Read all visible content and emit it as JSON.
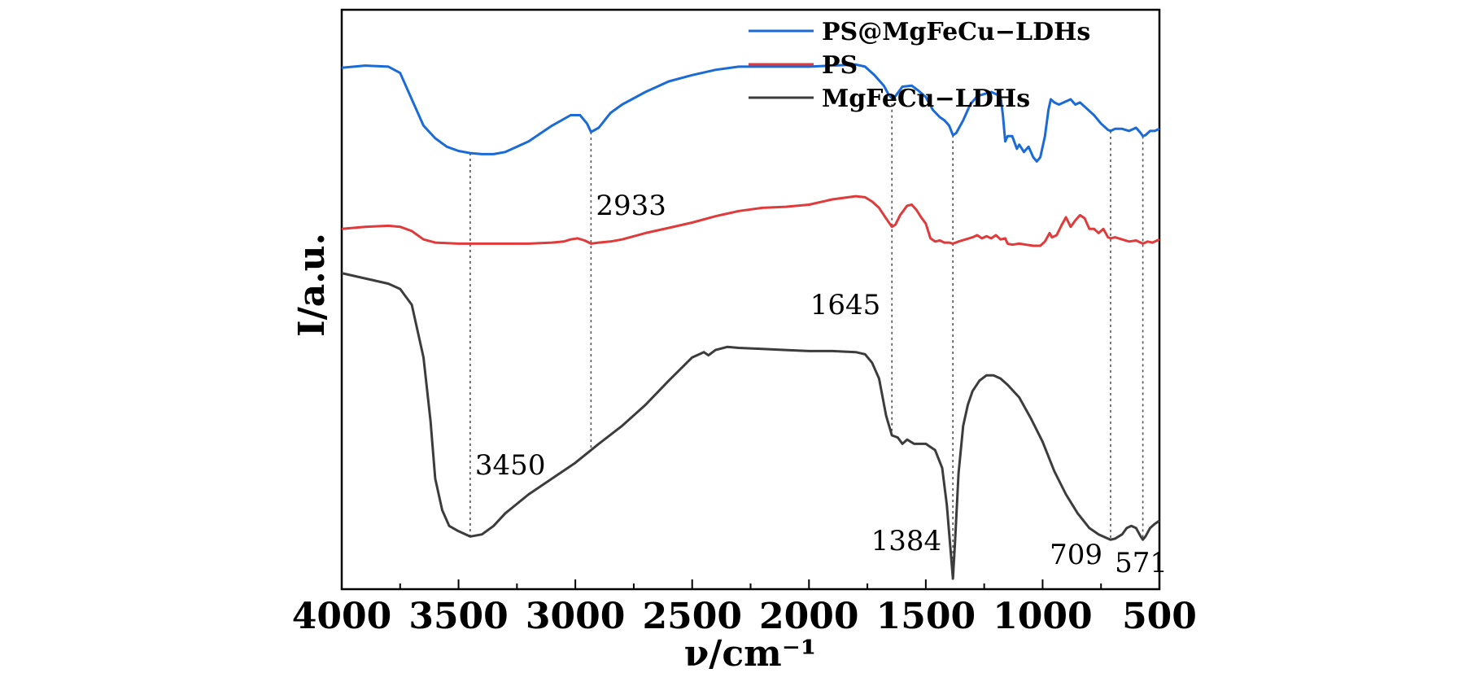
{
  "chart_data": {
    "type": "line",
    "xlabel": "ν/cm⁻¹",
    "ylabel": "I/a.u.",
    "xlim": [
      4000,
      500
    ],
    "x_reversed": true,
    "x_ticks": [
      4000,
      3500,
      3000,
      2500,
      2000,
      1500,
      1000,
      500
    ],
    "yticks_shown": false,
    "grid": false,
    "legend_position": "top-right",
    "series": [
      {
        "name": "PS@MgFeCu−LDHs",
        "color": "#1a6ad8",
        "points": [
          [
            4000,
            4.95
          ],
          [
            3900,
            4.97
          ],
          [
            3800,
            4.96
          ],
          [
            3750,
            4.9
          ],
          [
            3700,
            4.65
          ],
          [
            3650,
            4.4
          ],
          [
            3600,
            4.28
          ],
          [
            3550,
            4.2
          ],
          [
            3500,
            4.16
          ],
          [
            3450,
            4.14
          ],
          [
            3400,
            4.13
          ],
          [
            3350,
            4.13
          ],
          [
            3300,
            4.15
          ],
          [
            3200,
            4.25
          ],
          [
            3100,
            4.4
          ],
          [
            3020,
            4.5
          ],
          [
            2980,
            4.5
          ],
          [
            2950,
            4.42
          ],
          [
            2933,
            4.34
          ],
          [
            2900,
            4.38
          ],
          [
            2850,
            4.52
          ],
          [
            2800,
            4.6
          ],
          [
            2700,
            4.72
          ],
          [
            2600,
            4.82
          ],
          [
            2500,
            4.88
          ],
          [
            2400,
            4.93
          ],
          [
            2300,
            4.96
          ],
          [
            2200,
            4.96
          ],
          [
            2100,
            4.96
          ],
          [
            2000,
            4.96
          ],
          [
            1900,
            4.97
          ],
          [
            1800,
            4.98
          ],
          [
            1760,
            4.96
          ],
          [
            1720,
            4.88
          ],
          [
            1680,
            4.78
          ],
          [
            1660,
            4.7
          ],
          [
            1645,
            4.66
          ],
          [
            1630,
            4.68
          ],
          [
            1600,
            4.77
          ],
          [
            1560,
            4.78
          ],
          [
            1530,
            4.73
          ],
          [
            1500,
            4.67
          ],
          [
            1470,
            4.55
          ],
          [
            1440,
            4.48
          ],
          [
            1420,
            4.45
          ],
          [
            1400,
            4.4
          ],
          [
            1384,
            4.31
          ],
          [
            1370,
            4.33
          ],
          [
            1340,
            4.45
          ],
          [
            1310,
            4.6
          ],
          [
            1280,
            4.68
          ],
          [
            1250,
            4.7
          ],
          [
            1220,
            4.72
          ],
          [
            1200,
            4.7
          ],
          [
            1180,
            4.68
          ],
          [
            1170,
            4.5
          ],
          [
            1160,
            4.25
          ],
          [
            1150,
            4.3
          ],
          [
            1130,
            4.3
          ],
          [
            1110,
            4.18
          ],
          [
            1100,
            4.22
          ],
          [
            1080,
            4.15
          ],
          [
            1060,
            4.2
          ],
          [
            1040,
            4.1
          ],
          [
            1025,
            4.06
          ],
          [
            1010,
            4.1
          ],
          [
            990,
            4.3
          ],
          [
            975,
            4.55
          ],
          [
            965,
            4.65
          ],
          [
            950,
            4.62
          ],
          [
            930,
            4.6
          ],
          [
            900,
            4.63
          ],
          [
            880,
            4.65
          ],
          [
            860,
            4.6
          ],
          [
            840,
            4.62
          ],
          [
            810,
            4.56
          ],
          [
            780,
            4.5
          ],
          [
            750,
            4.42
          ],
          [
            720,
            4.36
          ],
          [
            709,
            4.35
          ],
          [
            690,
            4.37
          ],
          [
            660,
            4.37
          ],
          [
            630,
            4.35
          ],
          [
            600,
            4.38
          ],
          [
            580,
            4.33
          ],
          [
            571,
            4.3
          ],
          [
            560,
            4.31
          ],
          [
            540,
            4.35
          ],
          [
            520,
            4.35
          ],
          [
            500,
            4.37
          ]
        ]
      },
      {
        "name": "PS",
        "color": "#e03a3a",
        "points": [
          [
            4000,
            3.42
          ],
          [
            3900,
            3.44
          ],
          [
            3800,
            3.45
          ],
          [
            3750,
            3.44
          ],
          [
            3700,
            3.4
          ],
          [
            3650,
            3.32
          ],
          [
            3600,
            3.29
          ],
          [
            3500,
            3.28
          ],
          [
            3450,
            3.28
          ],
          [
            3400,
            3.28
          ],
          [
            3300,
            3.28
          ],
          [
            3200,
            3.28
          ],
          [
            3100,
            3.29
          ],
          [
            3050,
            3.3
          ],
          [
            3020,
            3.32
          ],
          [
            2990,
            3.33
          ],
          [
            2960,
            3.31
          ],
          [
            2933,
            3.28
          ],
          [
            2900,
            3.29
          ],
          [
            2850,
            3.3
          ],
          [
            2800,
            3.32
          ],
          [
            2700,
            3.38
          ],
          [
            2600,
            3.43
          ],
          [
            2500,
            3.48
          ],
          [
            2400,
            3.54
          ],
          [
            2300,
            3.59
          ],
          [
            2200,
            3.62
          ],
          [
            2100,
            3.63
          ],
          [
            2000,
            3.65
          ],
          [
            1900,
            3.7
          ],
          [
            1800,
            3.73
          ],
          [
            1760,
            3.72
          ],
          [
            1730,
            3.68
          ],
          [
            1700,
            3.62
          ],
          [
            1670,
            3.52
          ],
          [
            1645,
            3.44
          ],
          [
            1630,
            3.46
          ],
          [
            1610,
            3.55
          ],
          [
            1580,
            3.64
          ],
          [
            1560,
            3.65
          ],
          [
            1540,
            3.6
          ],
          [
            1520,
            3.53
          ],
          [
            1500,
            3.47
          ],
          [
            1480,
            3.33
          ],
          [
            1460,
            3.3
          ],
          [
            1440,
            3.31
          ],
          [
            1420,
            3.29
          ],
          [
            1400,
            3.29
          ],
          [
            1384,
            3.28
          ],
          [
            1360,
            3.3
          ],
          [
            1330,
            3.32
          ],
          [
            1300,
            3.34
          ],
          [
            1280,
            3.36
          ],
          [
            1260,
            3.33
          ],
          [
            1240,
            3.35
          ],
          [
            1220,
            3.33
          ],
          [
            1200,
            3.36
          ],
          [
            1180,
            3.32
          ],
          [
            1160,
            3.33
          ],
          [
            1150,
            3.28
          ],
          [
            1130,
            3.27
          ],
          [
            1100,
            3.28
          ],
          [
            1070,
            3.27
          ],
          [
            1040,
            3.26
          ],
          [
            1010,
            3.26
          ],
          [
            990,
            3.3
          ],
          [
            970,
            3.38
          ],
          [
            960,
            3.34
          ],
          [
            940,
            3.36
          ],
          [
            920,
            3.45
          ],
          [
            900,
            3.53
          ],
          [
            880,
            3.44
          ],
          [
            860,
            3.5
          ],
          [
            840,
            3.55
          ],
          [
            820,
            3.52
          ],
          [
            800,
            3.42
          ],
          [
            780,
            3.42
          ],
          [
            760,
            3.38
          ],
          [
            740,
            3.42
          ],
          [
            720,
            3.34
          ],
          [
            709,
            3.33
          ],
          [
            690,
            3.34
          ],
          [
            660,
            3.32
          ],
          [
            630,
            3.3
          ],
          [
            600,
            3.31
          ],
          [
            580,
            3.29
          ],
          [
            571,
            3.28
          ],
          [
            550,
            3.3
          ],
          [
            530,
            3.29
          ],
          [
            500,
            3.32
          ]
        ]
      },
      {
        "name": "MgFeCu−LDHs",
        "color": "#3c3c3c",
        "points": [
          [
            4000,
            3.0
          ],
          [
            3900,
            2.95
          ],
          [
            3800,
            2.9
          ],
          [
            3750,
            2.85
          ],
          [
            3700,
            2.7
          ],
          [
            3650,
            2.2
          ],
          [
            3620,
            1.6
          ],
          [
            3600,
            1.05
          ],
          [
            3570,
            0.75
          ],
          [
            3540,
            0.6
          ],
          [
            3500,
            0.55
          ],
          [
            3450,
            0.5
          ],
          [
            3400,
            0.52
          ],
          [
            3350,
            0.6
          ],
          [
            3300,
            0.72
          ],
          [
            3200,
            0.9
          ],
          [
            3100,
            1.05
          ],
          [
            3000,
            1.2
          ],
          [
            2900,
            1.38
          ],
          [
            2800,
            1.55
          ],
          [
            2700,
            1.75
          ],
          [
            2600,
            1.98
          ],
          [
            2500,
            2.2
          ],
          [
            2450,
            2.25
          ],
          [
            2430,
            2.22
          ],
          [
            2400,
            2.27
          ],
          [
            2350,
            2.3
          ],
          [
            2300,
            2.29
          ],
          [
            2200,
            2.28
          ],
          [
            2100,
            2.27
          ],
          [
            2000,
            2.26
          ],
          [
            1900,
            2.26
          ],
          [
            1800,
            2.25
          ],
          [
            1760,
            2.23
          ],
          [
            1730,
            2.15
          ],
          [
            1700,
            2.0
          ],
          [
            1670,
            1.65
          ],
          [
            1645,
            1.46
          ],
          [
            1620,
            1.44
          ],
          [
            1600,
            1.38
          ],
          [
            1580,
            1.42
          ],
          [
            1550,
            1.38
          ],
          [
            1500,
            1.38
          ],
          [
            1460,
            1.32
          ],
          [
            1430,
            1.15
          ],
          [
            1410,
            0.8
          ],
          [
            1395,
            0.4
          ],
          [
            1384,
            0.1
          ],
          [
            1375,
            0.45
          ],
          [
            1360,
            1.1
          ],
          [
            1340,
            1.55
          ],
          [
            1320,
            1.75
          ],
          [
            1300,
            1.88
          ],
          [
            1270,
            1.98
          ],
          [
            1240,
            2.03
          ],
          [
            1210,
            2.03
          ],
          [
            1180,
            2.0
          ],
          [
            1150,
            1.94
          ],
          [
            1100,
            1.82
          ],
          [
            1050,
            1.62
          ],
          [
            1000,
            1.4
          ],
          [
            950,
            1.12
          ],
          [
            900,
            0.9
          ],
          [
            850,
            0.72
          ],
          [
            800,
            0.58
          ],
          [
            760,
            0.52
          ],
          [
            720,
            0.48
          ],
          [
            709,
            0.47
          ],
          [
            690,
            0.48
          ],
          [
            660,
            0.52
          ],
          [
            640,
            0.58
          ],
          [
            620,
            0.6
          ],
          [
            600,
            0.58
          ],
          [
            580,
            0.5
          ],
          [
            571,
            0.47
          ],
          [
            560,
            0.5
          ],
          [
            540,
            0.58
          ],
          [
            520,
            0.62
          ],
          [
            500,
            0.65
          ]
        ]
      }
    ],
    "annotations": [
      {
        "text": "2933",
        "x": 2933
      },
      {
        "text": "1645",
        "x": 1645
      },
      {
        "text": "3450",
        "x": 3450
      },
      {
        "text": "1384",
        "x": 1384
      },
      {
        "text": "709",
        "x": 709
      },
      {
        "text": "571",
        "x": 571
      }
    ]
  }
}
